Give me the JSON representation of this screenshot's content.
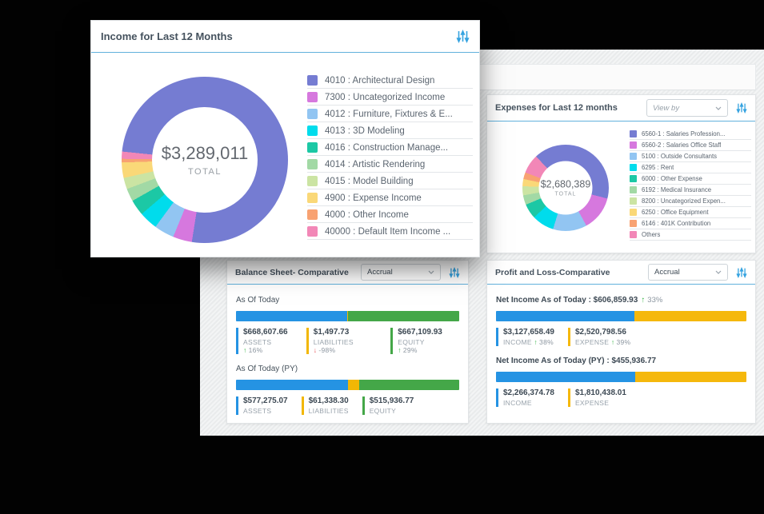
{
  "income_card": {
    "title": "Income for Last 12 Months",
    "total": "$3,289,011",
    "total_label": "TOTAL",
    "legend": [
      {
        "label": "4010 : Architectural Design",
        "color": "#757cd2"
      },
      {
        "label": "7300 : Uncategorized Income",
        "color": "#d678de"
      },
      {
        "label": "4012 : Furniture, Fixtures & E...",
        "color": "#92c5f2"
      },
      {
        "label": "4013 : 3D Modeling",
        "color": "#00dcec"
      },
      {
        "label": "4016 : Construction Manage...",
        "color": "#1cc8a5"
      },
      {
        "label": "4014 : Artistic Rendering",
        "color": "#a2d9a5"
      },
      {
        "label": "4015 : Model Building",
        "color": "#cbe4a3"
      },
      {
        "label": "4900 : Expense Income",
        "color": "#fad878"
      },
      {
        "label": "4000 : Other Income",
        "color": "#f8a272"
      },
      {
        "label": "40000 : Default Item Income ...",
        "color": "#f287b7"
      }
    ],
    "segments": [
      {
        "color": "#757cd2",
        "end": 52.5
      },
      {
        "color": "#d678de",
        "end": 56.2
      },
      {
        "color": "#92c5f2",
        "end": 60.1
      },
      {
        "color": "#00dcec",
        "end": 63.7
      },
      {
        "color": "#1cc8a5",
        "end": 66.8
      },
      {
        "color": "#a2d9a5",
        "end": 69.3
      },
      {
        "color": "#cbe4a3",
        "end": 71.5
      },
      {
        "color": "#fad878",
        "end": 74.5
      },
      {
        "color": "#f8a272",
        "end": 75.2
      },
      {
        "color": "#f287b7",
        "end": 76.6
      },
      {
        "color": "#757cd2",
        "end": 100
      }
    ]
  },
  "expenses_card": {
    "title": "Expenses for Last 12 months",
    "view_by_placeholder": "View by",
    "total": "$2,680,389",
    "total_label": "TOTAL",
    "legend": [
      {
        "label": "6560-1 : Salaries Profession...",
        "color": "#757cd2"
      },
      {
        "label": "6560-2 : Salaries Office Staff",
        "color": "#d678de"
      },
      {
        "label": "5100 : Outside Consultants",
        "color": "#92c5f2"
      },
      {
        "label": "6295 : Rent",
        "color": "#00dcec"
      },
      {
        "label": "6000 : Other Expense",
        "color": "#1cc8a5"
      },
      {
        "label": "6192 : Medical Insurance",
        "color": "#a2d9a5"
      },
      {
        "label": "8200 : Uncategorized Expen...",
        "color": "#cbe4a3"
      },
      {
        "label": "6250 : Office Equipment",
        "color": "#fad878"
      },
      {
        "label": "6146 : 401K Contribution",
        "color": "#f8a272"
      },
      {
        "label": "Others",
        "color": "#f287b7"
      }
    ],
    "segments": [
      {
        "color": "#757cd2",
        "end": 29
      },
      {
        "color": "#d678de",
        "end": 42
      },
      {
        "color": "#92c5f2",
        "end": 54.7
      },
      {
        "color": "#00dcec",
        "end": 63
      },
      {
        "color": "#1cc8a5",
        "end": 68.6
      },
      {
        "color": "#a2d9a5",
        "end": 72.2
      },
      {
        "color": "#cbe4a3",
        "end": 75.6
      },
      {
        "color": "#fad878",
        "end": 78.3
      },
      {
        "color": "#f8a272",
        "end": 80.8
      },
      {
        "color": "#f287b7",
        "end": 88
      },
      {
        "color": "#757cd2",
        "end": 100
      }
    ]
  },
  "balance_card": {
    "title": "Balance Sheet- Comparative",
    "dropdown_value": "Accrual",
    "today": {
      "label": "As Of Today",
      "bar": [
        {
          "color": "#2593e3",
          "w": "49.8%"
        },
        {
          "color": "#f2b705",
          "w": "0.4%"
        },
        {
          "color": "#44a748",
          "w": "49.8%"
        }
      ],
      "stats": [
        {
          "value": "$668,607.66",
          "label": "ASSETS",
          "arrow": "↑",
          "pct": "16%",
          "color": "#2593e3",
          "dir": "up"
        },
        {
          "value": "$1,497.73",
          "label": "LIABILITIES",
          "arrow": "↓",
          "pct": "-98%",
          "color": "#f2b705",
          "dir": "down"
        },
        {
          "value": "$667,109.93",
          "label": "EQUITY",
          "arrow": "↑",
          "pct": "29%",
          "color": "#44a748",
          "dir": "up"
        }
      ]
    },
    "py": {
      "label": "As Of Today (PY)",
      "bar": [
        {
          "color": "#2593e3",
          "w": "50%"
        },
        {
          "color": "#f2b705",
          "w": "5.3%"
        },
        {
          "color": "#44a748",
          "w": "44.7%"
        }
      ],
      "stats": [
        {
          "value": "$577,275.07",
          "label": "ASSETS",
          "arrow": "",
          "pct": "",
          "color": "#2593e3"
        },
        {
          "value": "$61,338.30",
          "label": "LIABILITIES",
          "arrow": "",
          "pct": "",
          "color": "#f2b705"
        },
        {
          "value": "$515,936.77",
          "label": "EQUITY",
          "arrow": "",
          "pct": "",
          "color": "#44a748"
        }
      ]
    }
  },
  "pl_card": {
    "title": "Profit and Loss-Comparative",
    "dropdown_value": "Accrual",
    "today": {
      "headline": "Net Income As of Today : $606,859.93",
      "arrow": "↑",
      "pct": "33%",
      "bar": [
        {
          "color": "#2593e3",
          "w": "55.4%"
        },
        {
          "color": "#f5b80c",
          "w": "44.6%"
        }
      ],
      "stats": [
        {
          "value": "$3,127,658.49",
          "label": "INCOME",
          "arrow": "↑",
          "pct": "38%",
          "color": "#2593e3",
          "dir": "up"
        },
        {
          "value": "$2,520,798.56",
          "label": "EXPENSE",
          "arrow": "↑",
          "pct": "39%",
          "color": "#f5b80c",
          "dir": "up"
        }
      ]
    },
    "py": {
      "headline": "Net Income As of Today (PY) : $455,936.77",
      "arrow": "",
      "pct": "",
      "bar": [
        {
          "color": "#2593e3",
          "w": "55.6%"
        },
        {
          "color": "#f5b80c",
          "w": "44.4%"
        }
      ],
      "stats": [
        {
          "value": "$2,266,374.78",
          "label": "INCOME",
          "arrow": "",
          "pct": "",
          "color": "#2593e3"
        },
        {
          "value": "$1,810,438.01",
          "label": "EXPENSE",
          "arrow": "",
          "pct": "",
          "color": "#f5b80c"
        }
      ]
    }
  }
}
